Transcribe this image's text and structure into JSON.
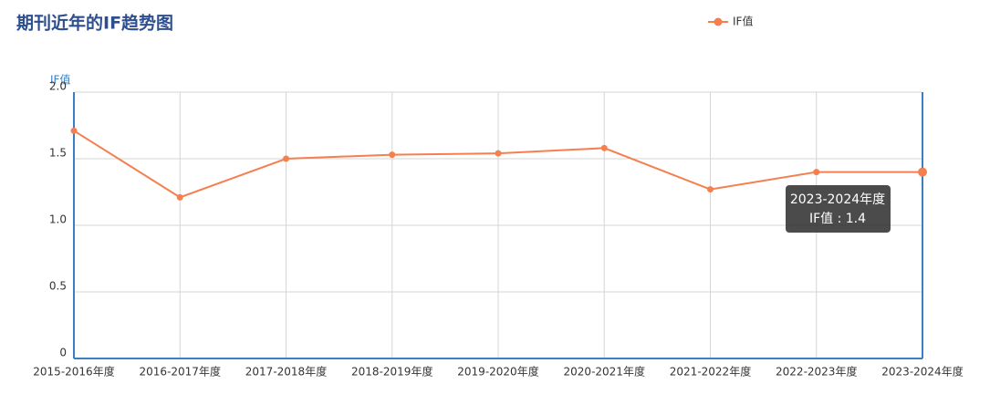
{
  "chart_data": {
    "type": "line",
    "title": "期刊近年的IF趋势图",
    "y_label": "IF值",
    "categories": [
      "2015-2016年度",
      "2016-2017年度",
      "2017-2018年度",
      "2018-2019年度",
      "2019-2020年度",
      "2020-2021年度",
      "2021-2022年度",
      "2022-2023年度",
      "2023-2024年度"
    ],
    "series": [
      {
        "name": "IF值",
        "color": "#f47f4f",
        "values": [
          1.71,
          1.21,
          1.5,
          1.53,
          1.54,
          1.58,
          1.27,
          1.4,
          1.4
        ]
      }
    ],
    "ylim": [
      0,
      2
    ],
    "yticks": [
      0,
      0.5,
      {
        "value": 1,
        "label": "1.0"
      },
      1.5,
      {
        "value": 2,
        "label": "2.0"
      }
    ],
    "grid": true,
    "legend": "top",
    "tooltip": {
      "title": "2023-2024年度",
      "text": "IF值 : 1.4"
    }
  }
}
